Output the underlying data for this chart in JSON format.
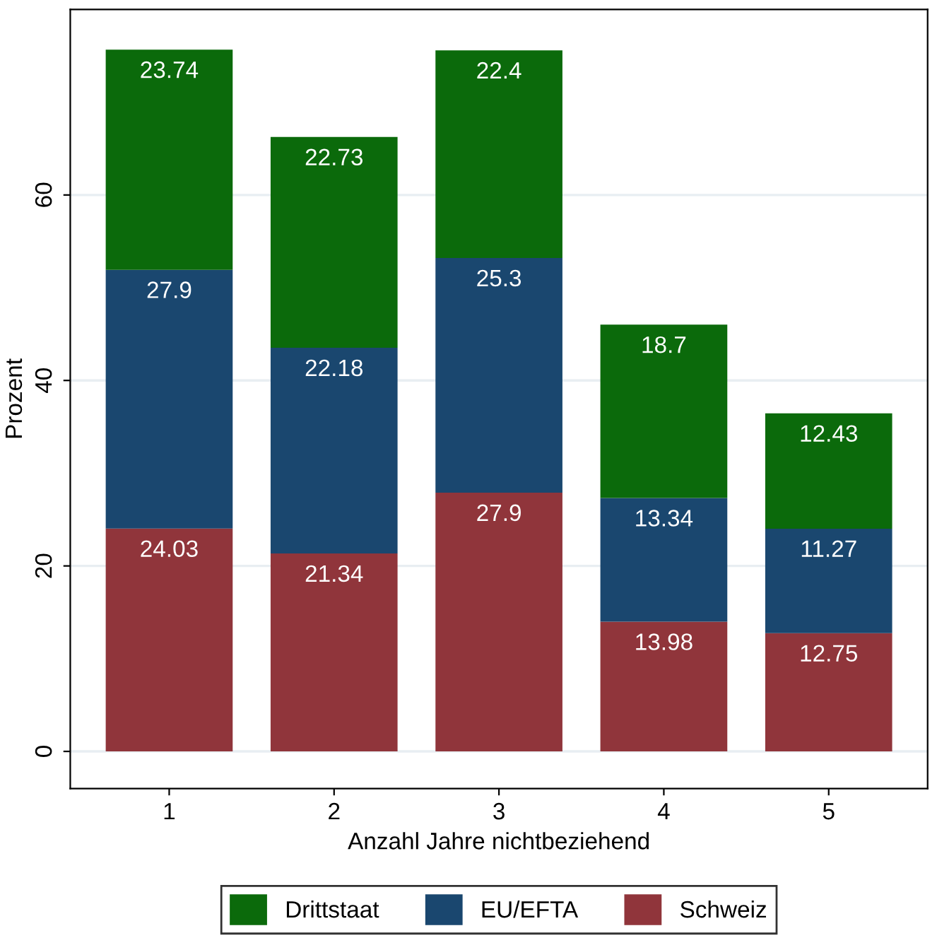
{
  "chart_data": {
    "type": "bar",
    "stacked": true,
    "xlabel": "Anzahl Jahre nichtbeziehend",
    "ylabel": "Prozent",
    "categories": [
      "1",
      "2",
      "3",
      "4",
      "5"
    ],
    "series": [
      {
        "name": "Schweiz",
        "color": "#90353b",
        "values": [
          24.03,
          21.34,
          27.9,
          13.98,
          12.75
        ]
      },
      {
        "name": "EU/EFTA",
        "color": "#1a476f",
        "values": [
          27.9,
          22.18,
          25.3,
          13.34,
          11.27
        ]
      },
      {
        "name": "Drittstaat",
        "color": "#0b6a0b",
        "values": [
          23.74,
          22.73,
          22.4,
          18.7,
          12.43
        ]
      }
    ],
    "ylim": [
      -4,
      80
    ],
    "yticks": [
      0,
      20,
      40,
      60
    ],
    "grid": "y",
    "legend": "bottom",
    "data_labels": true
  }
}
